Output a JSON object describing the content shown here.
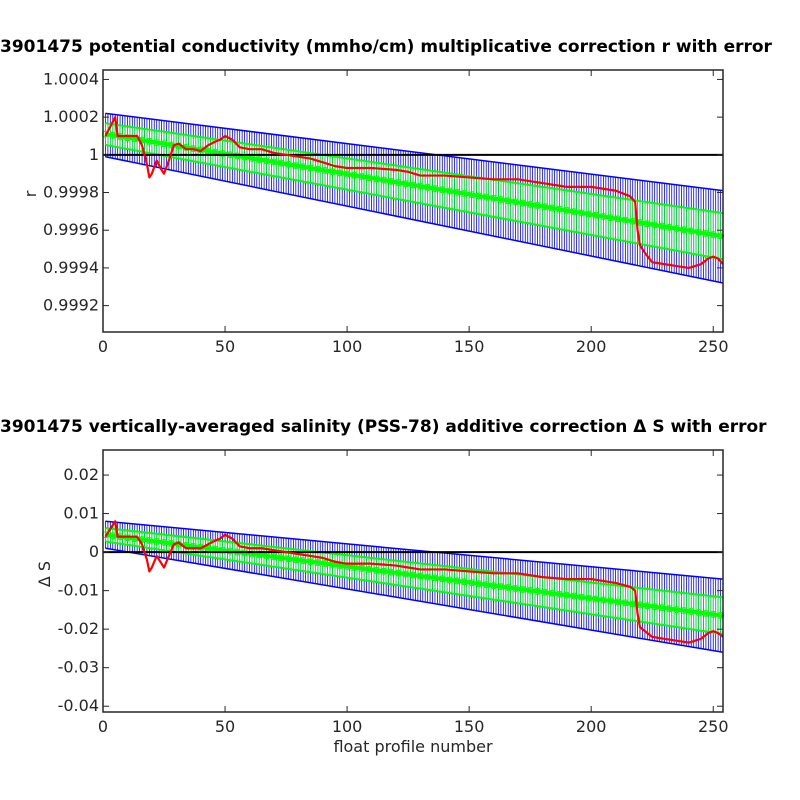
{
  "chart_data": [
    {
      "type": "line",
      "title": "3901475 potential conductivity (mmho/cm) multiplicative correction r with error",
      "xlabel": "",
      "ylabel": "r",
      "xlim": [
        0,
        254
      ],
      "ylim": [
        0.99906,
        1.00045
      ],
      "xticks": [
        0,
        50,
        100,
        150,
        200,
        250
      ],
      "xtick_labels": [
        "0",
        "50",
        "100",
        "150",
        "200",
        "250"
      ],
      "yticks": [
        0.9992,
        0.9994,
        0.9996,
        0.9998,
        1,
        1.0002,
        1.0004
      ],
      "ytick_labels": [
        "0.9992",
        "0.9994",
        "0.9996",
        "0.9998",
        "1",
        "1.0002",
        "1.0004"
      ],
      "grid": false,
      "reference_line": 1,
      "series": [
        {
          "role": "fit",
          "color": "#00ff00",
          "x": [
            1,
            254
          ],
          "y": [
            1.00011,
            0.999568
          ],
          "error_lower": [
            0.99999,
            0.99932
          ],
          "error_upper": [
            1.00022,
            0.99981
          ]
        },
        {
          "role": "profile_correction",
          "color": "#ff0000",
          "x": [
            1,
            5,
            6,
            10,
            14,
            16,
            18,
            19,
            20,
            22,
            24,
            25,
            27,
            29,
            31,
            34,
            37,
            40,
            43,
            46,
            48,
            50,
            53,
            56,
            60,
            65,
            70,
            75,
            80,
            85,
            90,
            95,
            100,
            110,
            120,
            125,
            130,
            140,
            150,
            160,
            170,
            175,
            180,
            190,
            200,
            210,
            216,
            218,
            219,
            220,
            222,
            225,
            230,
            235,
            240,
            245,
            248,
            250,
            252,
            254
          ],
          "y": [
            1.0001,
            1.0002,
            1.0001,
            1.0001,
            1.0001,
            1.00005,
            0.99995,
            0.99988,
            0.9999,
            0.99997,
            0.99992,
            0.9999,
            0.99997,
            1.00005,
            1.00006,
            1.00003,
            1.00003,
            1.00002,
            1.00005,
            1.00007,
            1.00008,
            1.0001,
            1.00008,
            1.00004,
            1.00003,
            1.00003,
            1.00001,
            1.0,
            0.99999,
            0.99998,
            0.99996,
            0.99994,
            0.99993,
            0.99993,
            0.99992,
            0.99991,
            0.99989,
            0.99989,
            0.99988,
            0.99987,
            0.99987,
            0.99986,
            0.99985,
            0.99983,
            0.99983,
            0.99981,
            0.99978,
            0.99975,
            0.9996,
            0.99952,
            0.99948,
            0.99943,
            0.99942,
            0.99941,
            0.9994,
            0.99942,
            0.99945,
            0.99946,
            0.99945,
            0.99942
          ]
        }
      ]
    },
    {
      "type": "line",
      "title": "3901475 vertically-averaged salinity (PSS-78) additive correction Δ S with error",
      "xlabel": "float profile number",
      "ylabel": "Δ S",
      "xlim": [
        0,
        254
      ],
      "ylim": [
        -0.0415,
        0.0265
      ],
      "xticks": [
        0,
        50,
        100,
        150,
        200,
        250
      ],
      "xtick_labels": [
        "0",
        "50",
        "100",
        "150",
        "200",
        "250"
      ],
      "yticks": [
        -0.04,
        -0.03,
        -0.02,
        -0.01,
        0,
        0.01,
        0.02
      ],
      "ytick_labels": [
        "-0.04",
        "-0.03",
        "-0.02",
        "-0.01",
        "0",
        "0.01",
        "0.02"
      ],
      "grid": false,
      "reference_line": 0,
      "series": [
        {
          "role": "fit",
          "color": "#00ff00",
          "x": [
            1,
            254
          ],
          "y": [
            0.0045,
            -0.0165
          ],
          "error_lower": [
            0.001,
            -0.026
          ],
          "error_upper": [
            0.008,
            -0.007
          ]
        },
        {
          "role": "profile_correction",
          "color": "#ff0000",
          "x": [
            1,
            5,
            6,
            10,
            14,
            16,
            18,
            19,
            20,
            22,
            24,
            25,
            27,
            29,
            31,
            34,
            37,
            40,
            43,
            46,
            48,
            50,
            53,
            56,
            60,
            65,
            70,
            75,
            80,
            85,
            90,
            95,
            100,
            110,
            120,
            125,
            130,
            140,
            150,
            160,
            170,
            175,
            180,
            190,
            200,
            210,
            216,
            218,
            219,
            220,
            222,
            225,
            230,
            235,
            240,
            245,
            248,
            250,
            252,
            254
          ],
          "y": [
            0.004,
            0.008,
            0.004,
            0.004,
            0.004,
            0.002,
            -0.002,
            -0.005,
            -0.004,
            -0.001,
            -0.003,
            -0.004,
            -0.001,
            0.002,
            0.0025,
            0.001,
            0.001,
            0.001,
            0.002,
            0.003,
            0.0035,
            0.0045,
            0.0035,
            0.0015,
            0.001,
            0.001,
            0.0005,
            0.0,
            -0.0005,
            -0.001,
            -0.0015,
            -0.0025,
            -0.003,
            -0.003,
            -0.0035,
            -0.004,
            -0.0045,
            -0.0045,
            -0.005,
            -0.0055,
            -0.0055,
            -0.006,
            -0.0065,
            -0.007,
            -0.007,
            -0.008,
            -0.009,
            -0.01,
            -0.016,
            -0.0195,
            -0.0205,
            -0.022,
            -0.0225,
            -0.023,
            -0.0235,
            -0.0225,
            -0.021,
            -0.0205,
            -0.021,
            -0.022
          ]
        }
      ]
    }
  ]
}
